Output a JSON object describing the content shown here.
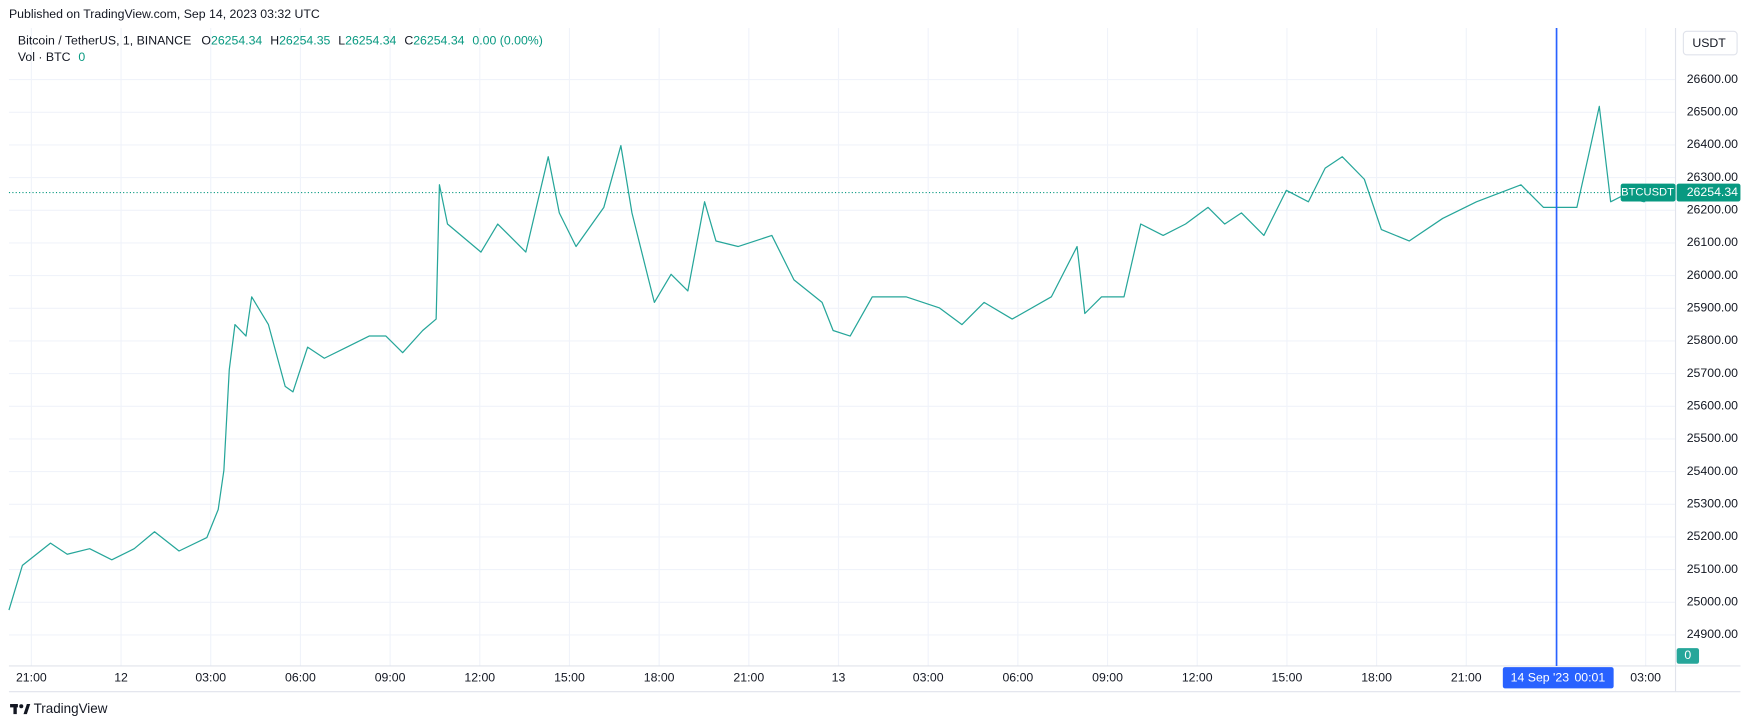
{
  "header": {
    "published": "Published on TradingView.com, Sep 14, 2023 03:32 UTC"
  },
  "chart_data": {
    "type": "line",
    "title": "Bitcoin / TetherUS, 1, BINANCE",
    "ohlc": [
      {
        "label": "O",
        "value": 26254.34
      },
      {
        "label": "H",
        "value": 26254.35
      },
      {
        "label": "L",
        "value": 26254.34
      },
      {
        "label": "C",
        "value": 26254.34
      }
    ],
    "change": "0.00 (0.00%)",
    "volume_label": "Vol · BTC",
    "volume_value": 0,
    "currency": "USDT",
    "symbol": "BTCUSDT",
    "last_price": 26254.34,
    "volume_last": 0,
    "crosshair": {
      "x": 51.02,
      "date": "14 Sep '23",
      "time": "00:01"
    },
    "color": "#26a69a",
    "x": [
      -0.75,
      -0.3,
      0.64,
      1.2,
      1.95,
      2.69,
      3.44,
      4.12,
      4.94,
      5.87,
      6.25,
      6.44,
      6.62,
      6.81,
      7.18,
      7.37,
      7.93,
      8.49,
      8.75,
      9.24,
      9.8,
      10.55,
      11.3,
      11.86,
      12.42,
      13.09,
      13.54,
      13.65,
      13.92,
      15.04,
      15.6,
      16.54,
      17.29,
      17.66,
      18.22,
      19.15,
      19.72,
      20.09,
      20.65,
      20.84,
      21.4,
      21.96,
      22.52,
      22.9,
      23.64,
      24.77,
      25.51,
      26.45,
      26.82,
      27.39,
      28.13,
      29.26,
      30.38,
      31.13,
      31.87,
      32.81,
      34.12,
      34.98,
      35.24,
      35.8,
      36.55,
      37.11,
      37.86,
      38.61,
      39.36,
      39.92,
      40.48,
      41.23,
      41.98,
      42.72,
      43.28,
      43.85,
      44.59,
      45.16,
      46.09,
      47.21,
      48.34,
      49.83,
      50.58,
      51.7,
      52.08,
      52.45,
      52.83,
      53.2,
      53.95,
      54.7,
      54.88
    ],
    "values": [
      24976,
      25113,
      25181,
      25147,
      25164,
      25130,
      25164,
      25216,
      25157,
      25198,
      25284,
      25404,
      25712,
      25850,
      25815,
      25935,
      25850,
      25661,
      25644,
      25781,
      25747,
      25781,
      25815,
      25815,
      25764,
      25832,
      25867,
      26278,
      26158,
      26072,
      26158,
      26072,
      26364,
      26192,
      26089,
      26209,
      26398,
      26192,
      25987,
      25918,
      26004,
      25953,
      26226,
      26106,
      26089,
      26123,
      25987,
      25918,
      25832,
      25815,
      25935,
      25935,
      25901,
      25850,
      25918,
      25867,
      25935,
      26089,
      25884,
      25935,
      25935,
      26158,
      26123,
      26158,
      26209,
      26158,
      26192,
      26123,
      26261,
      26226,
      26329,
      26364,
      26295,
      26141,
      26106,
      26175,
      26226,
      26278,
      26209,
      26209,
      26364,
      26518,
      26226,
      26243,
      26226,
      26278,
      26254.34
    ],
    "xlim": [
      -0.75,
      55
    ],
    "xticks": [
      {
        "value": 0,
        "label": "21:00"
      },
      {
        "value": 3,
        "label": "12"
      },
      {
        "value": 6,
        "label": "03:00"
      },
      {
        "value": 9,
        "label": "06:00"
      },
      {
        "value": 12,
        "label": "09:00"
      },
      {
        "value": 15,
        "label": "12:00"
      },
      {
        "value": 18,
        "label": "15:00"
      },
      {
        "value": 21,
        "label": "18:00"
      },
      {
        "value": 24,
        "label": "21:00"
      },
      {
        "value": 27,
        "label": "13"
      },
      {
        "value": 30,
        "label": "03:00"
      },
      {
        "value": 33,
        "label": "06:00"
      },
      {
        "value": 36,
        "label": "09:00"
      },
      {
        "value": 39,
        "label": "12:00"
      },
      {
        "value": 42,
        "label": "15:00"
      },
      {
        "value": 45,
        "label": "18:00"
      },
      {
        "value": 48,
        "label": "21:00"
      },
      {
        "value": 54,
        "label": "03:00"
      }
    ],
    "ylim": [
      24805,
      26758
    ],
    "yticks": [
      {
        "value": 24900,
        "label": "24900.00"
      },
      {
        "value": 25000,
        "label": "25000.00"
      },
      {
        "value": 25100,
        "label": "25100.00"
      },
      {
        "value": 25200,
        "label": "25200.00"
      },
      {
        "value": 25300,
        "label": "25300.00"
      },
      {
        "value": 25400,
        "label": "25400.00"
      },
      {
        "value": 25500,
        "label": "25500.00"
      },
      {
        "value": 25600,
        "label": "25600.00"
      },
      {
        "value": 25700,
        "label": "25700.00"
      },
      {
        "value": 25800,
        "label": "25800.00"
      },
      {
        "value": 25900,
        "label": "25900.00"
      },
      {
        "value": 26000,
        "label": "26000.00"
      },
      {
        "value": 26100,
        "label": "26100.00"
      },
      {
        "value": 26200,
        "label": "26200.00"
      },
      {
        "value": 26300,
        "label": "26300.00"
      },
      {
        "value": 26400,
        "label": "26400.00"
      },
      {
        "value": 26500,
        "label": "26500.00"
      },
      {
        "value": 26600,
        "label": "26600.00"
      }
    ],
    "grid": true
  },
  "footer": {
    "brand": "TradingView"
  }
}
